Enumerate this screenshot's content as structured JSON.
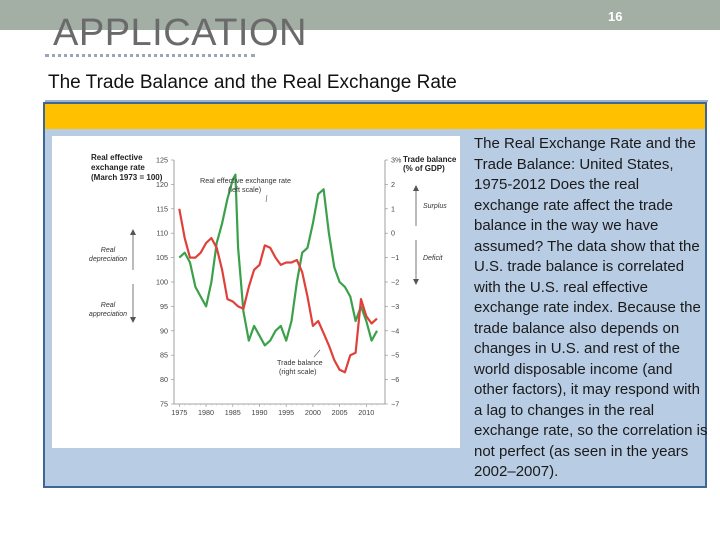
{
  "slide": {
    "title": "APPLICATION",
    "page_number": "16",
    "subtitle": "The Trade Balance and the Real Exchange Rate",
    "description": "The Real Exchange Rate and the Trade Balance: United States, 1975-2012 Does the real exchange rate affect the trade balance in the way we have assumed? The data show that the U.S. trade balance is correlated with the U.S. real effective exchange rate index. Because the trade balance also depends on changes in U.S. and rest of the world disposable income (and other factors), it may respond with a lag to changes in the real exchange rate, so the correlation is not perfect (as seen in the years 2002–2007).",
    "colors": {
      "topbar": "#a3aea5",
      "panel": "#b8cce4",
      "panel_border": "#3f6796",
      "highlight_bar": "#ffc000",
      "exchange_rate_line": "#3aa14a",
      "trade_balance_line": "#e0403a"
    }
  },
  "chart_data": {
    "type": "line",
    "left_axis_title": [
      "Real effective",
      "exchange rate",
      "(March 1973 = 100)"
    ],
    "right_axis_title": [
      "Trade balance",
      "(% of GDP)"
    ],
    "x_ticks": [
      1975,
      1980,
      1985,
      1990,
      1995,
      2000,
      2005,
      2010
    ],
    "x_tick_labels": [
      "1975",
      "1980",
      "1985",
      "1990",
      "1995",
      "2000",
      "2005",
      "2010"
    ],
    "left_ylim": [
      75,
      125
    ],
    "left_ticks": [
      75,
      80,
      85,
      90,
      95,
      100,
      105,
      110,
      115,
      120,
      125
    ],
    "left_tick_labels": [
      "75",
      "80",
      "85",
      "90",
      "95",
      "100",
      "105",
      "110",
      "115",
      "120",
      "125"
    ],
    "right_ylim": [
      -7,
      3
    ],
    "right_ticks": [
      3,
      2,
      1,
      0,
      -1,
      -2,
      -3,
      -4,
      -5,
      -6,
      -7
    ],
    "right_tick_labels": [
      "3%",
      "2",
      "1",
      "0",
      "−1",
      "−2",
      "−3",
      "−4",
      "−5",
      "−6",
      "−7"
    ],
    "series": [
      {
        "name": "Real effective exchange rate",
        "label_lines": [
          "Real effective exchange rate",
          "(left scale)"
        ],
        "axis": "left",
        "x": [
          1975,
          1976,
          1977,
          1978,
          1979,
          1980,
          1981,
          1982,
          1983,
          1984,
          1985,
          1985.5,
          1986,
          1987,
          1988,
          1989,
          1990,
          1991,
          1992,
          1993,
          1994,
          1995,
          1996,
          1997,
          1998,
          1999,
          2000,
          2001,
          2002,
          2003,
          2004,
          2005,
          2006,
          2007,
          2008,
          2009,
          2010,
          2011,
          2012
        ],
        "y": [
          105,
          106,
          104,
          99,
          97,
          95,
          100,
          108,
          112,
          117,
          121,
          122,
          107,
          94,
          88,
          91,
          89,
          87,
          88,
          90,
          91,
          88,
          92,
          100,
          106,
          107,
          112,
          118,
          119,
          110,
          103,
          100,
          99,
          97,
          92,
          95,
          92,
          88,
          90
        ]
      },
      {
        "name": "Trade balance",
        "label_lines": [
          "Trade balance",
          "(right scale)"
        ],
        "axis": "right",
        "x": [
          1975,
          1976,
          1977,
          1978,
          1979,
          1980,
          1981,
          1982,
          1983,
          1984,
          1985,
          1986,
          1987,
          1988,
          1989,
          1990,
          1991,
          1992,
          1993,
          1994,
          1995,
          1996,
          1997,
          1998,
          1999,
          2000,
          2001,
          2002,
          2003,
          2004,
          2005,
          2006,
          2007,
          2008,
          2009,
          2010,
          2011,
          2012
        ],
        "y": [
          1.0,
          -0.2,
          -1.0,
          -1.0,
          -0.8,
          -0.4,
          -0.2,
          -0.6,
          -1.5,
          -2.7,
          -2.8,
          -3.0,
          -3.1,
          -2.2,
          -1.5,
          -1.3,
          -0.5,
          -0.6,
          -1.0,
          -1.3,
          -1.2,
          -1.2,
          -1.1,
          -1.6,
          -2.6,
          -3.8,
          -3.6,
          -4.1,
          -4.6,
          -5.2,
          -5.6,
          -5.7,
          -5.0,
          -4.9,
          -2.7,
          -3.4,
          -3.7,
          -3.5
        ]
      }
    ],
    "annotations": {
      "depreciation": [
        "Real",
        "depreciation"
      ],
      "appreciation": [
        "Real",
        "appreciation"
      ],
      "surplus": "Surplus",
      "deficit": "Deficit"
    }
  }
}
